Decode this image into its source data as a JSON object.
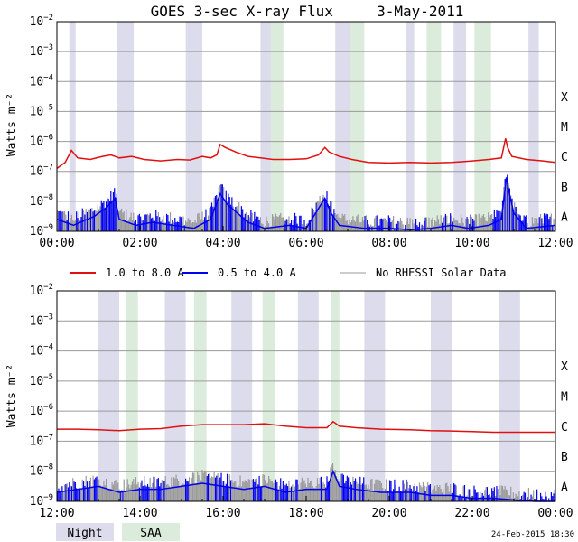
{
  "chart_data": {
    "type": "line",
    "title": "GOES 3-sec X-ray Flux     3-May-2011",
    "ylabel": "Watts m⁻²",
    "yscale": "log",
    "ylim_exp": [
      -9,
      -2
    ],
    "y_tick_exponents": [
      -9,
      -8,
      -7,
      -6,
      -5,
      -4,
      -3,
      -2
    ],
    "flare_classes": [
      {
        "label": "X",
        "exp": -4
      },
      {
        "label": "M",
        "exp": -5
      },
      {
        "label": "C",
        "exp": -6
      },
      {
        "label": "B",
        "exp": -7
      },
      {
        "label": "A",
        "exp": -8
      }
    ],
    "legend": [
      {
        "label": "1.0 to 8.0 A",
        "color": "#e01010"
      },
      {
        "label": "0.5 to 4.0 A",
        "color": "#0000ee"
      },
      {
        "label": "No RHESSI Solar Data",
        "color": "#999999"
      }
    ],
    "shade_legend": [
      {
        "label": "Night",
        "color": "#dcdcec"
      },
      {
        "label": "SAA",
        "color": "#dcecdc"
      }
    ],
    "panels": [
      {
        "xlim_hours": [
          0,
          12
        ],
        "x_tick_labels": [
          "00:00",
          "02:00",
          "04:00",
          "06:00",
          "08:00",
          "10:00",
          "12:00"
        ],
        "night_hours": [
          [
            0.3,
            0.45
          ],
          [
            1.45,
            1.85
          ],
          [
            3.1,
            3.5
          ],
          [
            4.9,
            5.15
          ],
          [
            6.7,
            7.05
          ],
          [
            8.4,
            8.6
          ],
          [
            9.55,
            9.85
          ],
          [
            11.35,
            11.6
          ]
        ],
        "saa_hours": [
          [
            5.15,
            5.45
          ],
          [
            7.05,
            7.4
          ],
          [
            8.9,
            9.25
          ],
          [
            10.05,
            10.45
          ]
        ],
        "long_channel": {
          "name": "1.0 to 8.0 A",
          "points_hours_log10": [
            [
              0.0,
              -6.9
            ],
            [
              0.2,
              -6.7
            ],
            [
              0.35,
              -6.3
            ],
            [
              0.5,
              -6.55
            ],
            [
              0.8,
              -6.6
            ],
            [
              1.1,
              -6.5
            ],
            [
              1.3,
              -6.45
            ],
            [
              1.5,
              -6.55
            ],
            [
              1.8,
              -6.5
            ],
            [
              2.1,
              -6.6
            ],
            [
              2.5,
              -6.65
            ],
            [
              2.9,
              -6.6
            ],
            [
              3.2,
              -6.62
            ],
            [
              3.5,
              -6.5
            ],
            [
              3.7,
              -6.55
            ],
            [
              3.85,
              -6.45
            ],
            [
              3.93,
              -6.1
            ],
            [
              4.05,
              -6.2
            ],
            [
              4.3,
              -6.35
            ],
            [
              4.6,
              -6.5
            ],
            [
              4.9,
              -6.55
            ],
            [
              5.2,
              -6.6
            ],
            [
              5.6,
              -6.6
            ],
            [
              6.0,
              -6.58
            ],
            [
              6.3,
              -6.45
            ],
            [
              6.45,
              -6.2
            ],
            [
              6.55,
              -6.35
            ],
            [
              6.8,
              -6.5
            ],
            [
              7.1,
              -6.6
            ],
            [
              7.5,
              -6.7
            ],
            [
              8.0,
              -6.72
            ],
            [
              8.5,
              -6.7
            ],
            [
              9.0,
              -6.72
            ],
            [
              9.5,
              -6.7
            ],
            [
              10.0,
              -6.65
            ],
            [
              10.4,
              -6.6
            ],
            [
              10.7,
              -6.55
            ],
            [
              10.8,
              -5.9
            ],
            [
              10.85,
              -6.2
            ],
            [
              10.95,
              -6.5
            ],
            [
              11.3,
              -6.6
            ],
            [
              11.7,
              -6.65
            ],
            [
              12.0,
              -6.7
            ]
          ]
        },
        "short_channel": {
          "name": "0.5 to 4.0 A",
          "points_hours_log10": [
            [
              0.0,
              -8.6
            ],
            [
              0.4,
              -8.8
            ],
            [
              0.9,
              -8.5
            ],
            [
              1.2,
              -8.2
            ],
            [
              1.4,
              -7.9
            ],
            [
              1.5,
              -8.6
            ],
            [
              1.9,
              -8.8
            ],
            [
              2.3,
              -8.7
            ],
            [
              2.8,
              -8.8
            ],
            [
              3.3,
              -8.9
            ],
            [
              3.7,
              -8.6
            ],
            [
              3.93,
              -7.75
            ],
            [
              4.1,
              -8.1
            ],
            [
              4.35,
              -8.4
            ],
            [
              4.6,
              -8.7
            ],
            [
              5.0,
              -8.9
            ],
            [
              5.6,
              -8.8
            ],
            [
              6.0,
              -8.9
            ],
            [
              6.45,
              -7.9
            ],
            [
              6.6,
              -8.4
            ],
            [
              6.8,
              -8.8
            ],
            [
              7.4,
              -8.9
            ],
            [
              8.0,
              -8.9
            ],
            [
              8.5,
              -8.95
            ],
            [
              9.0,
              -8.9
            ],
            [
              9.5,
              -8.8
            ],
            [
              9.9,
              -8.9
            ],
            [
              10.4,
              -8.8
            ],
            [
              10.7,
              -8.6
            ],
            [
              10.82,
              -7.2
            ],
            [
              10.9,
              -7.8
            ],
            [
              11.0,
              -8.4
            ],
            [
              11.3,
              -8.9
            ],
            [
              12.0,
              -8.8
            ]
          ]
        }
      },
      {
        "xlim_hours": [
          12,
          24
        ],
        "x_tick_labels": [
          "12:00",
          "14:00",
          "16:00",
          "18:00",
          "20:00",
          "22:00",
          "00:00"
        ],
        "night_hours": [
          [
            13.0,
            13.5
          ],
          [
            14.6,
            15.1
          ],
          [
            16.2,
            16.7
          ],
          [
            17.8,
            18.3
          ],
          [
            19.4,
            19.9
          ],
          [
            21.0,
            21.5
          ],
          [
            22.65,
            23.15
          ]
        ],
        "saa_hours": [
          [
            13.65,
            13.95
          ],
          [
            15.3,
            15.6
          ],
          [
            16.95,
            17.25
          ],
          [
            18.6,
            18.8
          ]
        ],
        "long_channel": {
          "name": "1.0 to 8.0 A",
          "points_hours_log10": [
            [
              12.0,
              -6.6
            ],
            [
              12.5,
              -6.6
            ],
            [
              13.0,
              -6.62
            ],
            [
              13.5,
              -6.65
            ],
            [
              14.0,
              -6.6
            ],
            [
              14.5,
              -6.58
            ],
            [
              15.0,
              -6.5
            ],
            [
              15.5,
              -6.45
            ],
            [
              16.0,
              -6.45
            ],
            [
              16.5,
              -6.45
            ],
            [
              17.0,
              -6.42
            ],
            [
              17.5,
              -6.5
            ],
            [
              18.0,
              -6.55
            ],
            [
              18.5,
              -6.55
            ],
            [
              18.65,
              -6.35
            ],
            [
              18.8,
              -6.5
            ],
            [
              19.2,
              -6.55
            ],
            [
              19.8,
              -6.6
            ],
            [
              20.5,
              -6.62
            ],
            [
              21.0,
              -6.65
            ],
            [
              21.5,
              -6.66
            ],
            [
              22.0,
              -6.68
            ],
            [
              22.5,
              -6.7
            ],
            [
              23.0,
              -6.7
            ],
            [
              23.5,
              -6.7
            ],
            [
              24.0,
              -6.7
            ]
          ]
        },
        "short_channel": {
          "name": "0.5 to 4.0 A",
          "points_hours_log10": [
            [
              12.0,
              -8.7
            ],
            [
              12.5,
              -8.6
            ],
            [
              13.0,
              -8.5
            ],
            [
              13.5,
              -8.7
            ],
            [
              14.0,
              -8.6
            ],
            [
              14.5,
              -8.6
            ],
            [
              15.0,
              -8.5
            ],
            [
              15.5,
              -8.4
            ],
            [
              16.0,
              -8.5
            ],
            [
              16.5,
              -8.6
            ],
            [
              17.0,
              -8.5
            ],
            [
              17.5,
              -8.7
            ],
            [
              18.0,
              -8.6
            ],
            [
              18.5,
              -8.6
            ],
            [
              18.65,
              -8.0
            ],
            [
              18.8,
              -8.5
            ],
            [
              19.2,
              -8.6
            ],
            [
              19.8,
              -8.7
            ],
            [
              20.5,
              -8.7
            ],
            [
              21.0,
              -8.8
            ],
            [
              21.5,
              -8.8
            ],
            [
              22.0,
              -8.9
            ],
            [
              22.5,
              -8.9
            ],
            [
              23.0,
              -8.95
            ],
            [
              23.5,
              -9.0
            ],
            [
              24.0,
              -9.0
            ]
          ]
        }
      }
    ]
  },
  "footer": {
    "timestamp": "24-Feb-2015 18:30"
  }
}
